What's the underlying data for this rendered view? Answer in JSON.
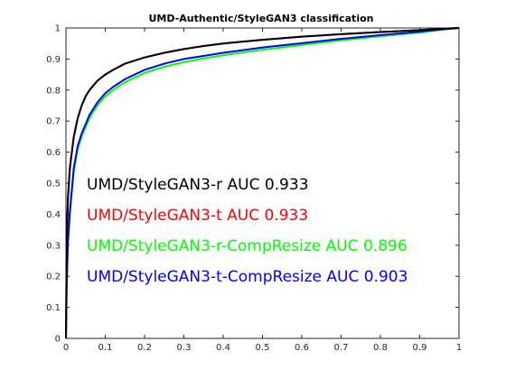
{
  "chart_data": {
    "type": "line",
    "title": "UMD-Authentic/StyleGAN3 classification",
    "xlabel": "",
    "ylabel": "",
    "xlim": [
      0,
      1
    ],
    "ylim": [
      0,
      1
    ],
    "xticks": [
      "0",
      "0.1",
      "0.2",
      "0.3",
      "0.4",
      "0.5",
      "0.6",
      "0.7",
      "0.8",
      "0.9",
      "1"
    ],
    "yticks": [
      "0",
      "0.1",
      "0.2",
      "0.3",
      "0.4",
      "0.5",
      "0.6",
      "0.7",
      "0.8",
      "0.9",
      "1"
    ],
    "grid": false,
    "series": [
      {
        "name": "UMD/StyleGAN3-r AUC 0.933",
        "color": "#000000",
        "x": [
          0,
          0.002,
          0.005,
          0.01,
          0.02,
          0.03,
          0.04,
          0.05,
          0.06,
          0.08,
          0.1,
          0.12,
          0.15,
          0.2,
          0.25,
          0.3,
          0.35,
          0.4,
          0.5,
          0.6,
          0.7,
          0.8,
          0.9,
          0.95,
          1.0
        ],
        "y": [
          0,
          0.32,
          0.45,
          0.55,
          0.65,
          0.71,
          0.75,
          0.78,
          0.8,
          0.83,
          0.85,
          0.865,
          0.885,
          0.905,
          0.92,
          0.932,
          0.942,
          0.95,
          0.962,
          0.972,
          0.98,
          0.987,
          0.993,
          0.997,
          1.0
        ]
      },
      {
        "name": "UMD/StyleGAN3-t AUC 0.933",
        "color": "#ff0000",
        "x": [
          0,
          0.002,
          0.005,
          0.01,
          0.02,
          0.03,
          0.04,
          0.05,
          0.06,
          0.08,
          0.1,
          0.12,
          0.15,
          0.2,
          0.25,
          0.3,
          0.35,
          0.4,
          0.5,
          0.6,
          0.7,
          0.8,
          0.9,
          0.95,
          1.0
        ],
        "y": [
          0,
          0.32,
          0.45,
          0.55,
          0.65,
          0.71,
          0.75,
          0.78,
          0.8,
          0.83,
          0.85,
          0.865,
          0.885,
          0.905,
          0.92,
          0.932,
          0.942,
          0.95,
          0.962,
          0.972,
          0.98,
          0.987,
          0.993,
          0.997,
          1.0
        ]
      },
      {
        "name": "UMD/StyleGAN3-r-CompResize AUC 0.896",
        "color": "#00ff00",
        "x": [
          0,
          0.002,
          0.005,
          0.01,
          0.02,
          0.03,
          0.04,
          0.05,
          0.06,
          0.08,
          0.1,
          0.12,
          0.15,
          0.2,
          0.25,
          0.3,
          0.35,
          0.4,
          0.5,
          0.6,
          0.7,
          0.8,
          0.9,
          0.95,
          1.0
        ],
        "y": [
          0,
          0.17,
          0.3,
          0.4,
          0.54,
          0.61,
          0.65,
          0.68,
          0.71,
          0.75,
          0.78,
          0.8,
          0.825,
          0.855,
          0.875,
          0.89,
          0.902,
          0.912,
          0.93,
          0.945,
          0.96,
          0.973,
          0.985,
          0.993,
          1.0
        ]
      },
      {
        "name": "UMD/StyleGAN3-t-CompResize AUC 0.903",
        "color": "#0000ff",
        "x": [
          0,
          0.002,
          0.005,
          0.01,
          0.02,
          0.03,
          0.04,
          0.05,
          0.06,
          0.08,
          0.1,
          0.12,
          0.15,
          0.2,
          0.25,
          0.3,
          0.35,
          0.4,
          0.5,
          0.6,
          0.7,
          0.8,
          0.9,
          0.95,
          1.0
        ],
        "y": [
          0,
          0.18,
          0.31,
          0.41,
          0.55,
          0.62,
          0.66,
          0.69,
          0.72,
          0.76,
          0.79,
          0.81,
          0.835,
          0.865,
          0.885,
          0.9,
          0.91,
          0.92,
          0.937,
          0.951,
          0.965,
          0.977,
          0.988,
          0.995,
          1.0
        ]
      }
    ],
    "legend_placement": "inside, left-center"
  }
}
